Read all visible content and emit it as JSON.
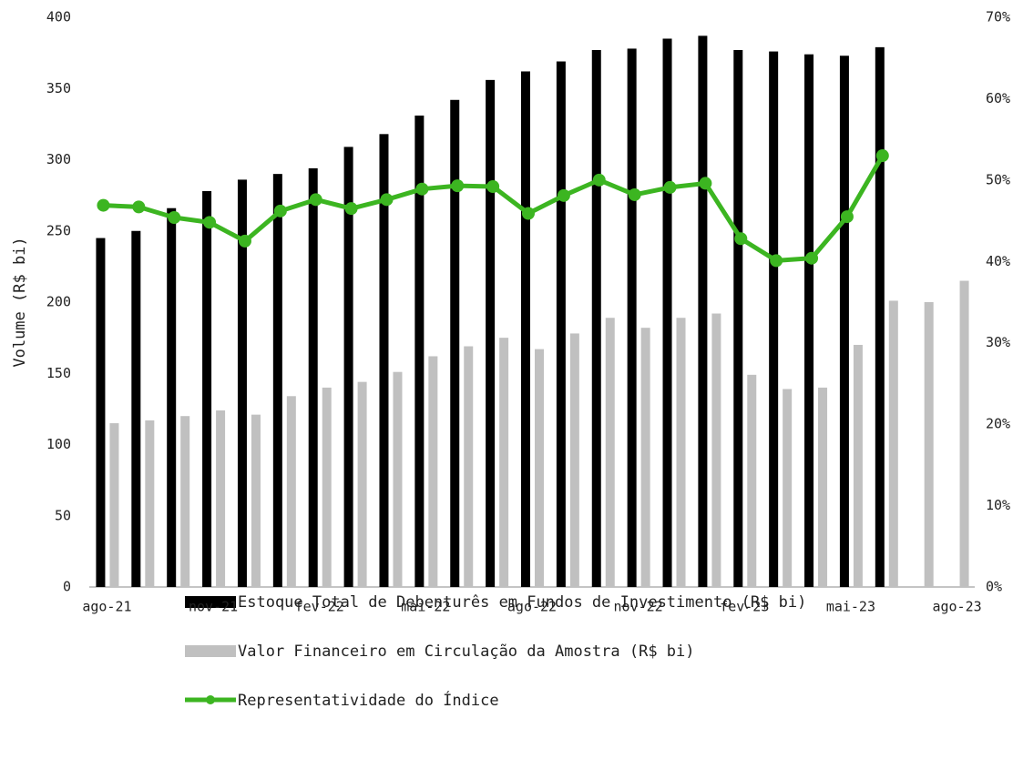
{
  "chart_data": {
    "type": "bar-line",
    "y_label": "Volume (R$ bi)",
    "categories": [
      "ago-21",
      null,
      null,
      "nov-21",
      null,
      null,
      "fev-22",
      null,
      null,
      "mai-22",
      null,
      null,
      "ago-22",
      null,
      null,
      "nov-22",
      null,
      null,
      "fev-23",
      null,
      null,
      "mai-23",
      null,
      null,
      "ago-23"
    ],
    "series": [
      {
        "name": "Estoque Total de Debenturês em Fundos de Investimento (R$ bi)",
        "type": "bar",
        "color": "#000000",
        "values": [
          245,
          250,
          266,
          278,
          286,
          290,
          294,
          309,
          318,
          331,
          342,
          356,
          362,
          369,
          377,
          378,
          385,
          387,
          377,
          376,
          374,
          373,
          379,
          null,
          null
        ]
      },
      {
        "name": "Valor Financeiro em Circulação da Amostra (R$ bi)",
        "type": "bar",
        "color": "#c0c0c0",
        "values": [
          115,
          117,
          120,
          124,
          121,
          134,
          140,
          144,
          151,
          162,
          169,
          175,
          167,
          178,
          189,
          182,
          189,
          192,
          149,
          139,
          140,
          170,
          201,
          200,
          215
        ]
      },
      {
        "name": "Representatividade do Índice",
        "type": "line",
        "axis": "y2",
        "color": "#3cb521",
        "values": [
          46.9,
          46.7,
          45.4,
          44.8,
          42.5,
          46.2,
          47.6,
          46.5,
          47.6,
          48.9,
          49.3,
          49.2,
          45.9,
          48.1,
          50.0,
          48.2,
          49.1,
          49.6,
          42.8,
          40.1,
          40.4,
          45.5,
          53.0,
          null,
          null
        ]
      }
    ],
    "ylim": [
      0,
      400
    ],
    "yticks": [
      0,
      50,
      100,
      150,
      200,
      250,
      300,
      350,
      400
    ],
    "y2lim": [
      0,
      70
    ],
    "y2ticks": [
      {
        "value": 0,
        "label": "0%"
      },
      {
        "value": 10,
        "label": "10%"
      },
      {
        "value": 20,
        "label": "20%"
      },
      {
        "value": 30,
        "label": "30%"
      },
      {
        "value": 40,
        "label": "40%"
      },
      {
        "value": 50,
        "label": "50%"
      },
      {
        "value": 60,
        "label": "60%"
      },
      {
        "value": 70,
        "label": "70%"
      }
    ],
    "grid": false
  }
}
